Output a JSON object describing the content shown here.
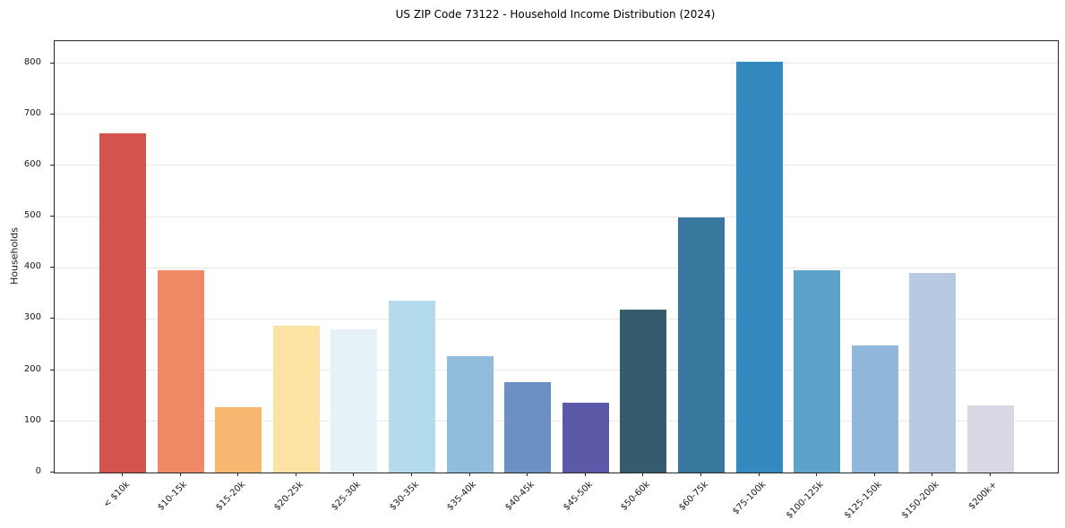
{
  "title": "US ZIP Code 73122 - Household Income Distribution (2024)",
  "chart_data": {
    "type": "bar",
    "title": "US ZIP Code 73122 - Household Income Distribution (2024)",
    "xlabel": "",
    "ylabel": "Households",
    "categories": [
      "< $10k",
      "$10-15k",
      "$15-20k",
      "$20-25k",
      "$25-30k",
      "$30-35k",
      "$35-40k",
      "$40-45k",
      "$45-50k",
      "$50-60k",
      "$60-75k",
      "$75-100k",
      "$100-125k",
      "$125-150k",
      "$150-200k",
      "$200k+"
    ],
    "values": [
      663,
      396,
      127,
      287,
      280,
      336,
      228,
      176,
      136,
      319,
      499,
      803,
      396,
      249,
      390,
      131
    ],
    "bar_colors": [
      "#d4534f",
      "#f08a66",
      "#f9b671",
      "#fce3a3",
      "#e6f2f7",
      "#b4dbec",
      "#92bcdc",
      "#6c90c3",
      "#5c59a9",
      "#345c6d",
      "#38789f",
      "#3489bf",
      "#5ba3c9",
      "#90b7d9",
      "#b8c9e2",
      "#d8d9e5"
    ],
    "ylim": [
      0,
      843
    ],
    "yticks": [
      0,
      100,
      200,
      300,
      400,
      500,
      600,
      700,
      800
    ],
    "grid": "horizontal",
    "grid_color": "#e9e9e9",
    "background": "#ffffff",
    "legend": "none"
  }
}
